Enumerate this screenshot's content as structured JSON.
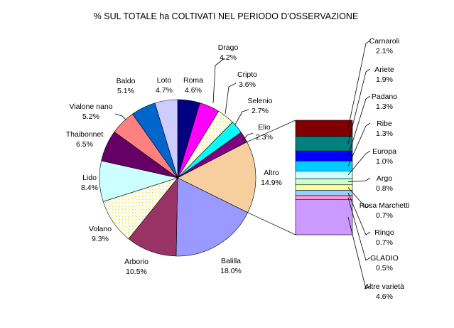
{
  "chart_data": {
    "type": "pie",
    "title": "% SUL TOTALE ha COLTIVATI NEL PERIODO D'OSSERVAZIONE",
    "slices": [
      {
        "name": "Roma",
        "value": 4.6,
        "label": "4.6%",
        "color": "#000080"
      },
      {
        "name": "Drago",
        "value": 4.2,
        "label": "4.2%",
        "color": "#ff00ff"
      },
      {
        "name": "Cripto",
        "value": 3.6,
        "label": "3.6%",
        "color": "#ffffcc",
        "pattern": "dots"
      },
      {
        "name": "Selenio",
        "value": 2.7,
        "label": "2.7%",
        "color": "#00ffff"
      },
      {
        "name": "Elio",
        "value": 2.3,
        "label": "2.3%",
        "color": "#800080"
      },
      {
        "name": "Altro",
        "value": 14.9,
        "label": "14.9%",
        "color": "#f7cf9e"
      },
      {
        "name": "Balilla",
        "value": 18.0,
        "label": "18.0%",
        "color": "#9999ff"
      },
      {
        "name": "Arborio",
        "value": 10.5,
        "label": "10.5%",
        "color": "#993366"
      },
      {
        "name": "Volano",
        "value": 9.3,
        "label": "9.3%",
        "color": "#ffffff",
        "pattern": "dots"
      },
      {
        "name": "Lido",
        "value": 8.4,
        "label": "8.4%",
        "color": "#ccffff"
      },
      {
        "name": "Thaibonnet",
        "value": 6.5,
        "label": "6.5%",
        "color": "#660066"
      },
      {
        "name": "Vialone nano",
        "value": 5.2,
        "label": "5.2%",
        "color": "#ff8080"
      },
      {
        "name": "Baldo",
        "value": 5.1,
        "label": "5.1%",
        "color": "#0066cc"
      },
      {
        "name": "Loto",
        "value": 4.7,
        "label": "4.7%",
        "color": "#ccccff"
      }
    ],
    "breakdown": {
      "of": "Altro",
      "items": [
        {
          "name": "Carnaroli",
          "value": 2.1,
          "label": "2.1%",
          "color": "#800000"
        },
        {
          "name": "Ariete",
          "value": 1.9,
          "label": "1.9%",
          "color": "#008080"
        },
        {
          "name": "Padano",
          "value": 1.3,
          "label": "1.3%",
          "color": "#0000ff"
        },
        {
          "name": "Ribe",
          "value": 1.3,
          "label": "1.3%",
          "color": "#00ccff"
        },
        {
          "name": "Europa",
          "value": 1.0,
          "label": "1.0%",
          "color": "#ccffff"
        },
        {
          "name": "Argo",
          "value": 0.8,
          "label": "0.8%",
          "color": "#ccffcc"
        },
        {
          "name": "Rosa Marchetti",
          "value": 0.7,
          "label": "0.7%",
          "color": "#ffff99"
        },
        {
          "name": "Ringo",
          "value": 0.7,
          "label": "0.7%",
          "color": "#99ccff"
        },
        {
          "name": "GLADIO",
          "value": 0.5,
          "label": "0.5%",
          "color": "#ff99cc"
        },
        {
          "name": "Altre varietà",
          "value": 4.6,
          "label": "4.6%",
          "color": "#cc99ff"
        }
      ]
    }
  }
}
